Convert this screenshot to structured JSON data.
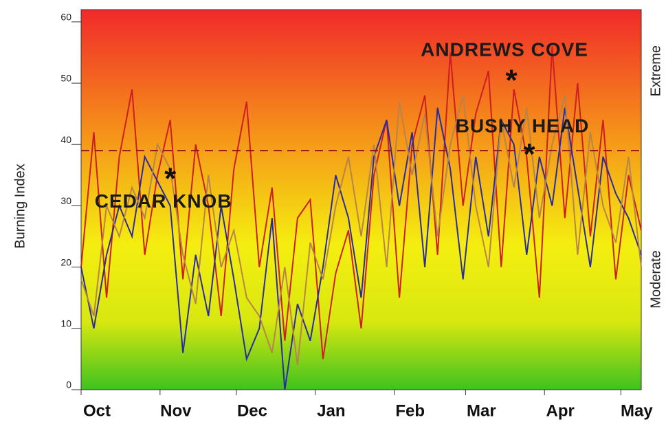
{
  "chart_data": {
    "type": "line",
    "y_label": "Burning Index",
    "right_labels": [
      {
        "text": "Extreme",
        "value": 52
      },
      {
        "text": "Moderate",
        "value": 18
      }
    ],
    "xlim": [
      0,
      220
    ],
    "xticks": [
      {
        "value": 0,
        "label": "Oct"
      },
      {
        "value": 31,
        "label": "Nov"
      },
      {
        "value": 61,
        "label": "Dec"
      },
      {
        "value": 92,
        "label": "Jan"
      },
      {
        "value": 123,
        "label": "Feb"
      },
      {
        "value": 151,
        "label": "Mar"
      },
      {
        "value": 182,
        "label": "Apr"
      },
      {
        "value": 212,
        "label": "May"
      }
    ],
    "ylim": [
      0,
      62
    ],
    "yticks": [
      0,
      10,
      20,
      30,
      40,
      50,
      60
    ],
    "reference_line": 39,
    "x": [
      0,
      5,
      10,
      15,
      20,
      25,
      30,
      35,
      40,
      45,
      50,
      55,
      60,
      65,
      70,
      75,
      80,
      85,
      90,
      95,
      100,
      105,
      110,
      115,
      120,
      125,
      130,
      135,
      140,
      145,
      150,
      155,
      160,
      165,
      170,
      175,
      180,
      185,
      190,
      195,
      200,
      205,
      210,
      215,
      220
    ],
    "series": [
      {
        "color": "#cc1f1f",
        "values": [
          20,
          42,
          15,
          38,
          49,
          22,
          35,
          44,
          18,
          40,
          30,
          12,
          36,
          47,
          20,
          33,
          8,
          28,
          31,
          5,
          19,
          26,
          10,
          35,
          44,
          15,
          40,
          48,
          22,
          55,
          30,
          45,
          52,
          20,
          49,
          38,
          15,
          56,
          28,
          50,
          25,
          44,
          18,
          35,
          26
        ]
      },
      {
        "color": "#2b2b9e",
        "values": [
          20,
          10,
          22,
          30,
          25,
          38,
          34,
          30,
          6,
          22,
          12,
          30,
          18,
          5,
          10,
          28,
          0,
          14,
          8,
          20,
          35,
          28,
          15,
          38,
          44,
          30,
          42,
          20,
          46,
          36,
          18,
          38,
          25,
          44,
          40,
          22,
          38,
          30,
          46,
          33,
          20,
          38,
          32,
          28,
          22
        ]
      },
      {
        "color": "#b8844a",
        "values": [
          18,
          12,
          30,
          25,
          33,
          28,
          40,
          36,
          22,
          14,
          35,
          20,
          26,
          15,
          12,
          6,
          20,
          4,
          24,
          18,
          30,
          38,
          25,
          40,
          20,
          47,
          35,
          45,
          25,
          40,
          48,
          30,
          20,
          44,
          33,
          46,
          28,
          40,
          48,
          22,
          42,
          30,
          24,
          38,
          20
        ]
      }
    ],
    "annotations": [
      {
        "text": "CEDAR KNOB",
        "x": 35,
        "y": 35
      },
      {
        "text": "ANDREWS COVE",
        "x": 169,
        "y": 51
      },
      {
        "text": "BUSHY HEAD",
        "x": 176,
        "y": 39
      }
    ]
  }
}
